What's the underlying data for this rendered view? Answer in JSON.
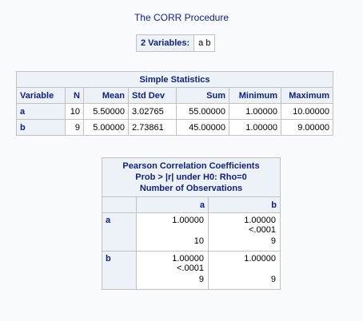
{
  "title": "The CORR Procedure",
  "variables": {
    "label": "2 Variables:",
    "value": "a b"
  },
  "simple_statistics": {
    "caption": "Simple Statistics",
    "columns": [
      "Variable",
      "N",
      "Mean",
      "Std Dev",
      "Sum",
      "Minimum",
      "Maximum"
    ],
    "rows": [
      {
        "variable": "a",
        "n": "10",
        "mean": "5.50000",
        "std_dev": "3.02765",
        "sum": "55.00000",
        "minimum": "1.00000",
        "maximum": "10.00000"
      },
      {
        "variable": "b",
        "n": "9",
        "mean": "5.00000",
        "std_dev": "2.73861",
        "sum": "45.00000",
        "minimum": "1.00000",
        "maximum": "9.00000"
      }
    ]
  },
  "pearson": {
    "caption_lines": [
      "Pearson Correlation Coefficients",
      "Prob > |r| under H0: Rho=0",
      "Number of Observations"
    ],
    "columns": [
      "a",
      "b"
    ],
    "rows": [
      {
        "label": "a",
        "cells": [
          {
            "coef": "1.00000",
            "prob": "",
            "n": "10"
          },
          {
            "coef": "1.00000",
            "prob": "<.0001",
            "n": "9"
          }
        ]
      },
      {
        "label": "b",
        "cells": [
          {
            "coef": "1.00000",
            "prob": "<.0001",
            "n": "9"
          },
          {
            "coef": "1.00000",
            "prob": "",
            "n": "9"
          }
        ]
      }
    ]
  }
}
